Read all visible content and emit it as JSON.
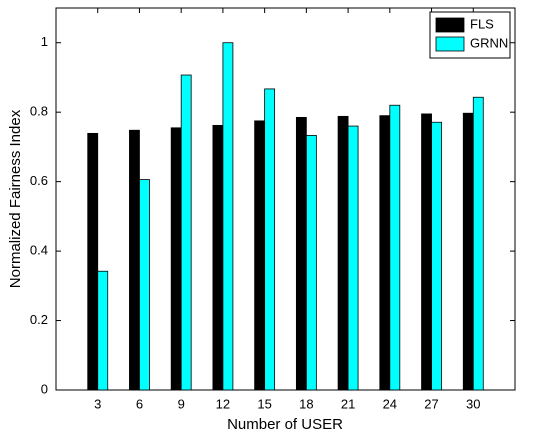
{
  "chart_data": {
    "type": "bar",
    "xlabel": "Number of USER",
    "ylabel": "Normalized Fairness Index",
    "x": [
      3,
      6,
      9,
      12,
      15,
      18,
      21,
      24,
      27,
      30
    ],
    "xlim": [
      0,
      33
    ],
    "xticks": [
      3,
      6,
      9,
      12,
      15,
      18,
      21,
      24,
      27,
      30
    ],
    "ylim": [
      0,
      1.1
    ],
    "yticks": [
      0,
      0.2,
      0.4,
      0.6,
      0.8,
      1
    ],
    "legend": "upper right",
    "series": [
      {
        "name": "FLS",
        "color": "#000000",
        "values": [
          0.739,
          0.748,
          0.755,
          0.762,
          0.775,
          0.785,
          0.788,
          0.79,
          0.795,
          0.797
        ]
      },
      {
        "name": "GRNN",
        "color": "#00ffff",
        "values": [
          0.342,
          0.606,
          0.907,
          1.0,
          0.867,
          0.733,
          0.76,
          0.82,
          0.771,
          0.843
        ]
      }
    ]
  }
}
